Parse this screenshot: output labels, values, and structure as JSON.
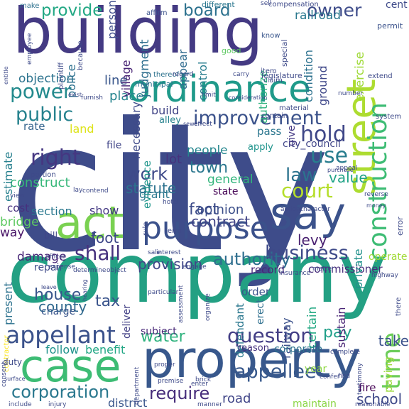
{
  "words": [
    {
      "text": "city",
      "color": "#3e4c8a"
    },
    {
      "text": "company",
      "color": "#23a083"
    },
    {
      "text": "building",
      "color": "#443a83"
    },
    {
      "text": "property",
      "color": "#38588c"
    },
    {
      "text": "case",
      "color": "#3dbc74"
    },
    {
      "text": "street",
      "color": "#addc30"
    },
    {
      "text": "ordinance",
      "color": "#1f9a8a"
    },
    {
      "text": "say",
      "color": "#3b528b"
    },
    {
      "text": "act",
      "color": "#7ad151"
    },
    {
      "text": "purpose",
      "color": "#3b518b"
    },
    {
      "text": "appellant",
      "color": "#3b528b"
    },
    {
      "text": "construction",
      "color": "#3dbc74"
    },
    {
      "text": "court",
      "color": "#b5de2b"
    },
    {
      "text": "business",
      "color": "#3e4a89"
    },
    {
      "text": "power",
      "color": "#238a8d"
    },
    {
      "text": "public",
      "color": "#26828e"
    },
    {
      "text": "improvement",
      "color": "#3b528b"
    },
    {
      "text": "right",
      "color": "#453781"
    },
    {
      "text": "shall",
      "color": "#46327e"
    },
    {
      "text": "question",
      "color": "#433e85"
    },
    {
      "text": "corporation",
      "color": "#2a788e"
    },
    {
      "text": "appellee",
      "color": "#38598c"
    },
    {
      "text": "require",
      "color": "#472d7b"
    },
    {
      "text": "time",
      "color": "#6ccd5a"
    },
    {
      "text": "hold",
      "color": "#3f4788"
    },
    {
      "text": "use",
      "color": "#287d8e"
    },
    {
      "text": "law",
      "color": "#2c738e"
    },
    {
      "text": "provide",
      "color": "#22a884"
    },
    {
      "text": "board",
      "color": "#2c718e"
    },
    {
      "text": "owner",
      "color": "#3e4c8a"
    },
    {
      "text": "authority",
      "color": "#2e6e8e"
    },
    {
      "text": "work",
      "color": "#3e4a89"
    },
    {
      "text": "fact",
      "color": "#3e4c8a"
    },
    {
      "text": "town",
      "color": "#2a768e"
    },
    {
      "text": "contract",
      "color": "#414487"
    },
    {
      "text": "house",
      "color": "#39568c"
    },
    {
      "text": "county",
      "color": "#30698e"
    },
    {
      "text": "tax",
      "color": "#3a548c"
    },
    {
      "text": "water",
      "color": "#2db27d"
    },
    {
      "text": "pay",
      "color": "#1f9f88"
    },
    {
      "text": "take",
      "color": "#3b518b"
    },
    {
      "text": "school",
      "color": "#3e4989"
    },
    {
      "text": "road",
      "color": "#404588"
    },
    {
      "text": "foot",
      "color": "#3f4889"
    },
    {
      "text": "levy",
      "color": "#481f70"
    },
    {
      "text": "provision",
      "color": "#3f4788"
    },
    {
      "text": "value",
      "color": "#20a386"
    },
    {
      "text": "statute",
      "color": "#2c728e"
    },
    {
      "text": "opinion",
      "color": "#3c4f8a"
    },
    {
      "text": "construct",
      "color": "#35b779"
    },
    {
      "text": "people",
      "color": "#24868e"
    },
    {
      "text": "general",
      "color": "#31b57b"
    },
    {
      "text": "state",
      "color": "#440154"
    },
    {
      "text": "lot",
      "color": "#46327e"
    },
    {
      "text": "grant",
      "color": "#2a788e"
    },
    {
      "text": "land",
      "color": "#dde318"
    },
    {
      "text": "place",
      "color": "#25848e"
    },
    {
      "text": "line",
      "color": "#39568c"
    },
    {
      "text": "objection",
      "color": "#2c738e"
    },
    {
      "text": "estimate",
      "color": "#27808e"
    },
    {
      "text": "section",
      "color": "#2a788e"
    },
    {
      "text": "bridge",
      "color": "#5ec962"
    },
    {
      "text": "cost",
      "color": "#46307e"
    },
    {
      "text": "show",
      "color": "#443983"
    },
    {
      "text": "way",
      "color": "#481467"
    },
    {
      "text": "bill",
      "color": "#404688"
    },
    {
      "text": "damage",
      "color": "#482677"
    },
    {
      "text": "present",
      "color": "#2c728e"
    },
    {
      "text": "repair",
      "color": "#3e4a89"
    },
    {
      "text": "railroad",
      "color": "#2a788e"
    },
    {
      "text": "judgment",
      "color": "#2e6e8e"
    },
    {
      "text": "person",
      "color": "#3e4c8a"
    },
    {
      "text": "police",
      "color": "#2d708e"
    },
    {
      "text": "village",
      "color": "#482475"
    },
    {
      "text": "control",
      "color": "#287d8e"
    },
    {
      "text": "appear",
      "color": "#2f6b8e"
    },
    {
      "text": "authorize",
      "color": "#2db27d"
    },
    {
      "text": "condition",
      "color": "#2c718e"
    },
    {
      "text": "ground",
      "color": "#3f4889"
    },
    {
      "text": "exercise",
      "color": "#a0da39"
    },
    {
      "text": "necessary",
      "color": "#3e4a89"
    },
    {
      "text": "evidence",
      "color": "#1f968b"
    },
    {
      "text": "build",
      "color": "#414487"
    },
    {
      "text": "alley",
      "color": "#26828e"
    },
    {
      "text": "pass",
      "color": "#2a768e"
    },
    {
      "text": "city_council",
      "color": "#404588"
    },
    {
      "text": "give",
      "color": "#443983"
    },
    {
      "text": "apply",
      "color": "#1f948c"
    },
    {
      "text": "file",
      "color": "#404588"
    },
    {
      "text": "rate",
      "color": "#33638d"
    },
    {
      "text": "commissioner",
      "color": "#472d7b"
    },
    {
      "text": "record",
      "color": "#482878"
    },
    {
      "text": "railway",
      "color": "#3b518b"
    },
    {
      "text": "defendant",
      "color": "#2a778e"
    },
    {
      "text": "certain",
      "color": "#23a983"
    },
    {
      "text": "sustain",
      "color": "#482475"
    },
    {
      "text": "order",
      "color": "#3b528b"
    },
    {
      "text": "erect",
      "color": "#2e6f8e"
    },
    {
      "text": "subject",
      "color": "#482878"
    },
    {
      "text": "deliver",
      "color": "#424086"
    },
    {
      "text": "follow",
      "color": "#20928c"
    },
    {
      "text": "benefit",
      "color": "#22a785"
    },
    {
      "text": "charge",
      "color": "#39568c"
    },
    {
      "text": "fire",
      "color": "#440154"
    },
    {
      "text": "private",
      "color": "#21918c"
    },
    {
      "text": "operate",
      "color": "#a2da37"
    },
    {
      "text": "year",
      "color": "#8fd744"
    },
    {
      "text": "reason",
      "color": "#46327e"
    },
    {
      "text": "corporate",
      "color": "#2c728e"
    },
    {
      "text": "district",
      "color": "#39568c"
    },
    {
      "text": "maintain",
      "color": "#8bd646"
    },
    {
      "text": "paving",
      "color": "#9bd93c"
    },
    {
      "text": "make",
      "color": "#2c718e"
    },
    {
      "text": "affirm",
      "color": "#3b528b"
    },
    {
      "text": "different",
      "color": "#2a768e"
    },
    {
      "text": "sell",
      "color": "#3e4a89"
    },
    {
      "text": "compensation",
      "color": "#3e4a89"
    },
    {
      "text": "cent",
      "color": "#3e4a89"
    },
    {
      "text": "permit",
      "color": "#3b528b"
    },
    {
      "text": "special",
      "color": "#3e4a89"
    },
    {
      "text": "know",
      "color": "#39568c"
    },
    {
      "text": "item",
      "color": "#3e4a89"
    },
    {
      "text": "claim",
      "color": "#3e4a89"
    },
    {
      "text": "legislature",
      "color": "#3e4a89"
    },
    {
      "text": "good",
      "color": "#5ec962"
    },
    {
      "text": "municipal",
      "color": "#2c728e"
    },
    {
      "text": "plaintiff",
      "color": "#3e4a89"
    },
    {
      "text": "because",
      "color": "#3e4a89"
    },
    {
      "text": "employee",
      "color": "#3e4a89"
    },
    {
      "text": "entitle",
      "color": "#3e4a89"
    },
    {
      "text": "thereof",
      "color": "#2c728e"
    },
    {
      "text": "regard",
      "color": "#3e4a89"
    },
    {
      "text": "carry",
      "color": "#3e4a89"
    },
    {
      "text": "extend",
      "color": "#3e4a89"
    },
    {
      "text": "number",
      "color": "#3e4a89"
    },
    {
      "text": "limit",
      "color": "#3e4a89"
    },
    {
      "text": "exist",
      "color": "#3e4a89"
    },
    {
      "text": "furnish",
      "color": "#3e4a89"
    },
    {
      "text": "consideration",
      "color": "#3e4a89"
    },
    {
      "text": "material",
      "color": "#3e4a89"
    },
    {
      "text": "contain",
      "color": "#3e4a89"
    },
    {
      "text": "system",
      "color": "#3e4a89"
    },
    {
      "text": "sewer",
      "color": "#3e4a89"
    },
    {
      "text": "effect",
      "color": "#3e4a89"
    },
    {
      "text": "portion",
      "color": "#3e4a89"
    },
    {
      "text": "appeal",
      "color": "#3e4a89"
    },
    {
      "text": "purchase",
      "color": "#3e4a89"
    },
    {
      "text": "lay",
      "color": "#3e4a89"
    },
    {
      "text": "contend",
      "color": "#3e4a89"
    },
    {
      "text": "view",
      "color": "#3e4a89"
    },
    {
      "text": "hotel",
      "color": "#3e4a89"
    },
    {
      "text": "action",
      "color": "#3e4a89"
    },
    {
      "text": "character",
      "color": "#3e4a89"
    },
    {
      "text": "reverse",
      "color": "#3e4a89"
    },
    {
      "text": "money",
      "color": "#3e4a89"
    },
    {
      "text": "error",
      "color": "#3e4a89"
    },
    {
      "text": "term",
      "color": "#3e4a89"
    },
    {
      "text": "rule",
      "color": "#3e4a89"
    },
    {
      "text": "officer",
      "color": "#3e4a89"
    },
    {
      "text": "sale",
      "color": "#3e4a89"
    },
    {
      "text": "interest",
      "color": "#3e4a89"
    },
    {
      "text": "expense",
      "color": "#3e4a89"
    },
    {
      "text": "determine",
      "color": "#3e4a89"
    },
    {
      "text": "object",
      "color": "#3e4a89"
    },
    {
      "text": "engage",
      "color": "#3e4a89"
    },
    {
      "text": "insurance",
      "color": "#3e4a89"
    },
    {
      "text": "matter",
      "color": "#3e4a89"
    },
    {
      "text": "highway",
      "color": "#3e4a89"
    },
    {
      "text": "leave",
      "color": "#3e4a89"
    },
    {
      "text": "hearing",
      "color": "#3e4a89"
    },
    {
      "text": "particular",
      "color": "#3e4a89"
    },
    {
      "text": "assessment",
      "color": "#3e4a89"
    },
    {
      "text": "organize",
      "color": "#3e4a89"
    },
    {
      "text": "there",
      "color": "#3e4a89"
    },
    {
      "text": "contractor",
      "color": "#fde725"
    },
    {
      "text": "duty",
      "color": "#3e4a89"
    },
    {
      "text": "consent",
      "color": "#3e4a89"
    },
    {
      "text": "surface",
      "color": "#3e4a89"
    },
    {
      "text": "include",
      "color": "#3e4a89"
    },
    {
      "text": "injury",
      "color": "#3e4a89"
    },
    {
      "text": "department",
      "color": "#3e4a89"
    },
    {
      "text": "premise",
      "color": "#3e4a89"
    },
    {
      "text": "enter",
      "color": "#3e4a89"
    },
    {
      "text": "brick",
      "color": "#3e4a89"
    },
    {
      "text": "manner",
      "color": "#3e4a89"
    },
    {
      "text": "confer",
      "color": "#3e4a89"
    },
    {
      "text": "find",
      "color": "#3e4a89"
    },
    {
      "text": "testimony",
      "color": "#3e4a89"
    },
    {
      "text": "complete",
      "color": "#3e4a89"
    },
    {
      "text": "proper",
      "color": "#3e4a89"
    },
    {
      "text": "reasonable",
      "color": "#3e4a89"
    }
  ]
}
